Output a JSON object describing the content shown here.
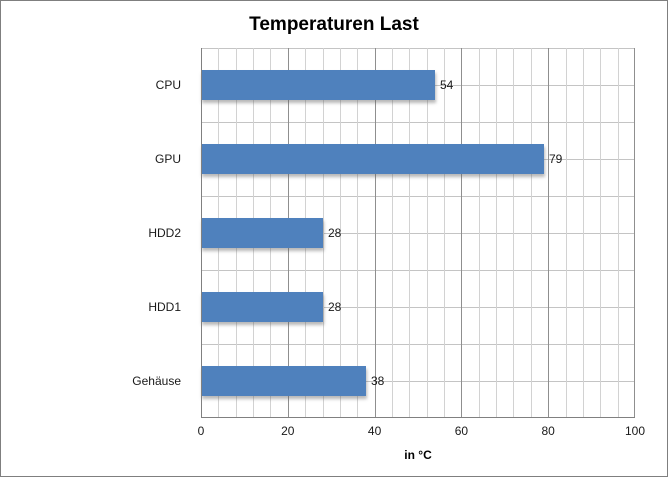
{
  "chart": {
    "title": "Temperaturen Last",
    "x_axis_title": "in °C"
  },
  "chart_data": {
    "type": "bar",
    "orientation": "horizontal",
    "title": "Temperaturen Last",
    "categories": [
      "CPU",
      "GPU",
      "HDD2",
      "HDD1",
      "Gehäuse"
    ],
    "values": [
      54,
      79,
      28,
      28,
      38
    ],
    "data_labels": [
      "54",
      "79",
      "28",
      "28",
      "38"
    ],
    "xlabel": "in °C",
    "ylabel": "",
    "xlim": [
      0,
      100
    ],
    "x_major_tick_labels": [
      "0",
      "20",
      "40",
      "60",
      "80",
      "100"
    ],
    "x_major_unit": 20,
    "x_minor_unit": 4,
    "grid": "major and minor vertical, category boundary and mid-band horizontal",
    "legend_position": "none",
    "colors": {
      "bar_fill": "#4F81BD",
      "minor_gridline": "#D2D2D2",
      "major_gridline": "#8F8F8F",
      "horizontal_gridline": "#C4C4C4",
      "axis_line": "#808080",
      "chart_border": "#7F7F7F",
      "text": "#1A1A1A",
      "background": "#FFFFFF"
    }
  }
}
